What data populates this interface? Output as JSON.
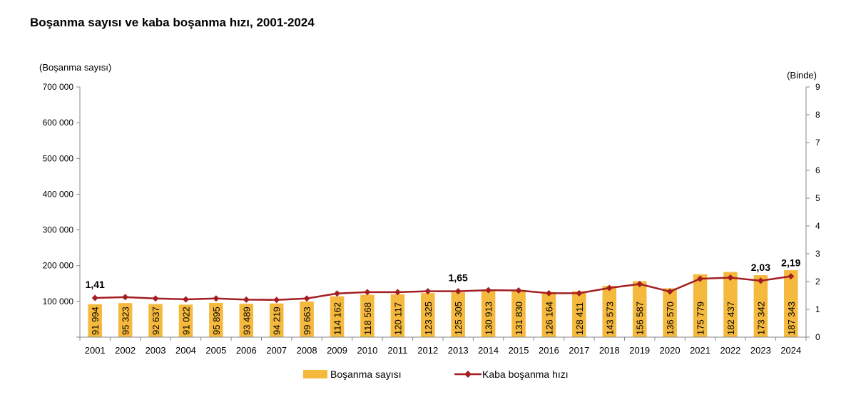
{
  "chart_data": {
    "type": "bar",
    "title": "Boşanma sayısı ve kaba boşanma hızı, 2001-2024",
    "ylabel": "(Boşanma sayısı)",
    "y2label": "(Binde)",
    "ylim": [
      0,
      700000
    ],
    "y2lim": [
      0,
      9
    ],
    "yticks": [
      "0",
      "100 000",
      "200 000",
      "300 000",
      "400 000",
      "500 000",
      "600 000",
      "700 000"
    ],
    "y2ticks": [
      "0",
      "1",
      "2",
      "3",
      "4",
      "5",
      "6",
      "7",
      "8",
      "9"
    ],
    "categories": [
      "2001",
      "2002",
      "2003",
      "2004",
      "2005",
      "2006",
      "2007",
      "2008",
      "2009",
      "2010",
      "2011",
      "2012",
      "2013",
      "2014",
      "2015",
      "2016",
      "2017",
      "2018",
      "2019",
      "2020",
      "2021",
      "2022",
      "2023",
      "2024"
    ],
    "bar_labels": [
      "91 994",
      "95 323",
      "92 637",
      "91 022",
      "95 895",
      "93 489",
      "94 219",
      "99 663",
      "114 162",
      "118 568",
      "120 117",
      "123 325",
      "125 305",
      "130 913",
      "131 830",
      "126 164",
      "128 411",
      "143 573",
      "156 587",
      "136 570",
      "175 779",
      "182 437",
      "173 342",
      "187 343"
    ],
    "series": [
      {
        "name": "Boşanma sayısı",
        "type": "bar",
        "axis": "left",
        "color": "#F5B93D",
        "values": [
          91994,
          95323,
          92637,
          91022,
          95895,
          93489,
          94219,
          99663,
          114162,
          118568,
          120117,
          123325,
          125305,
          130913,
          131830,
          126164,
          128411,
          143573,
          156587,
          136570,
          175779,
          182437,
          173342,
          187343
        ]
      },
      {
        "name": "Kaba boşanma hızı",
        "type": "line",
        "axis": "right",
        "color": "#A31E22",
        "values": [
          1.41,
          1.44,
          1.39,
          1.36,
          1.39,
          1.35,
          1.34,
          1.39,
          1.57,
          1.62,
          1.62,
          1.65,
          1.65,
          1.69,
          1.68,
          1.58,
          1.58,
          1.77,
          1.91,
          1.64,
          2.1,
          2.14,
          2.03,
          2.19
        ]
      }
    ],
    "point_labels": [
      {
        "index": 0,
        "text": "1,41"
      },
      {
        "index": 12,
        "text": "1,65"
      },
      {
        "index": 22,
        "text": "2,03"
      },
      {
        "index": 23,
        "text": "2,19"
      }
    ],
    "grid": false,
    "legend": "bottom"
  }
}
